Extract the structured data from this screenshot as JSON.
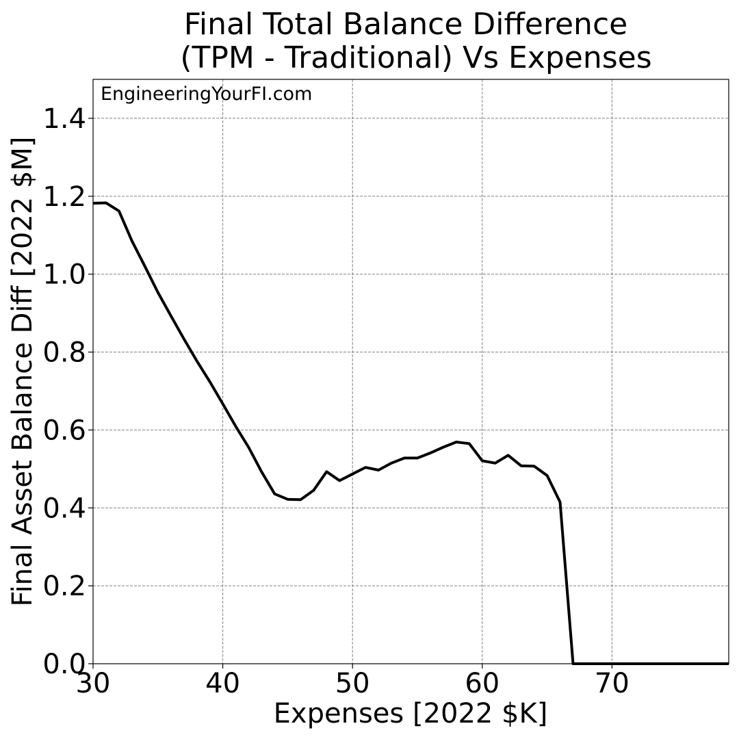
{
  "chart_data": {
    "type": "line",
    "title_line1": "Final Total Balance Difference",
    "title_line2": "(TPM - Traditional) Vs Expenses",
    "xlabel": "Expenses [2022 $K]",
    "ylabel": "Final Asset Balance Diff [2022 $M]",
    "watermark": "EngineeringYourFI.com",
    "xlim": [
      30,
      79
    ],
    "ylim": [
      0,
      1.5
    ],
    "xticks": [
      30,
      40,
      50,
      60,
      70
    ],
    "xtick_labels": [
      "30",
      "40",
      "50",
      "60",
      "70"
    ],
    "yticks": [
      0,
      0.2,
      0.4,
      0.6,
      0.8,
      1.0,
      1.2,
      1.4
    ],
    "ytick_labels": [
      "0.0",
      "0.2",
      "0.4",
      "0.6",
      "0.8",
      "1.0",
      "1.2",
      "1.4"
    ],
    "grid": true,
    "line_color": "#000000",
    "grid_color": "#808080",
    "series": [
      {
        "x": [
          30,
          31,
          32,
          33,
          34,
          35,
          36,
          37,
          38,
          39,
          40,
          41,
          42,
          43,
          44,
          45,
          46,
          47,
          48,
          49,
          50,
          51,
          52,
          53,
          54,
          55,
          56,
          57,
          58,
          59,
          60,
          61,
          62,
          63,
          64,
          65,
          66,
          67,
          68,
          69,
          70,
          71,
          72,
          73,
          74,
          75,
          76,
          77,
          78,
          79
        ],
        "y": [
          1.182,
          1.183,
          1.162,
          1.085,
          1.02,
          0.953,
          0.893,
          0.834,
          0.777,
          0.724,
          0.667,
          0.609,
          0.555,
          0.492,
          0.436,
          0.422,
          0.421,
          0.445,
          0.493,
          0.47,
          0.487,
          0.504,
          0.497,
          0.515,
          0.528,
          0.528,
          0.541,
          0.556,
          0.569,
          0.565,
          0.521,
          0.515,
          0.535,
          0.508,
          0.507,
          0.483,
          0.415,
          0.0,
          0.0,
          0.0,
          0.0,
          0.0,
          0.0,
          0.0,
          0.0,
          0.0,
          0.0,
          0.0,
          0.0,
          0.0
        ]
      }
    ]
  }
}
